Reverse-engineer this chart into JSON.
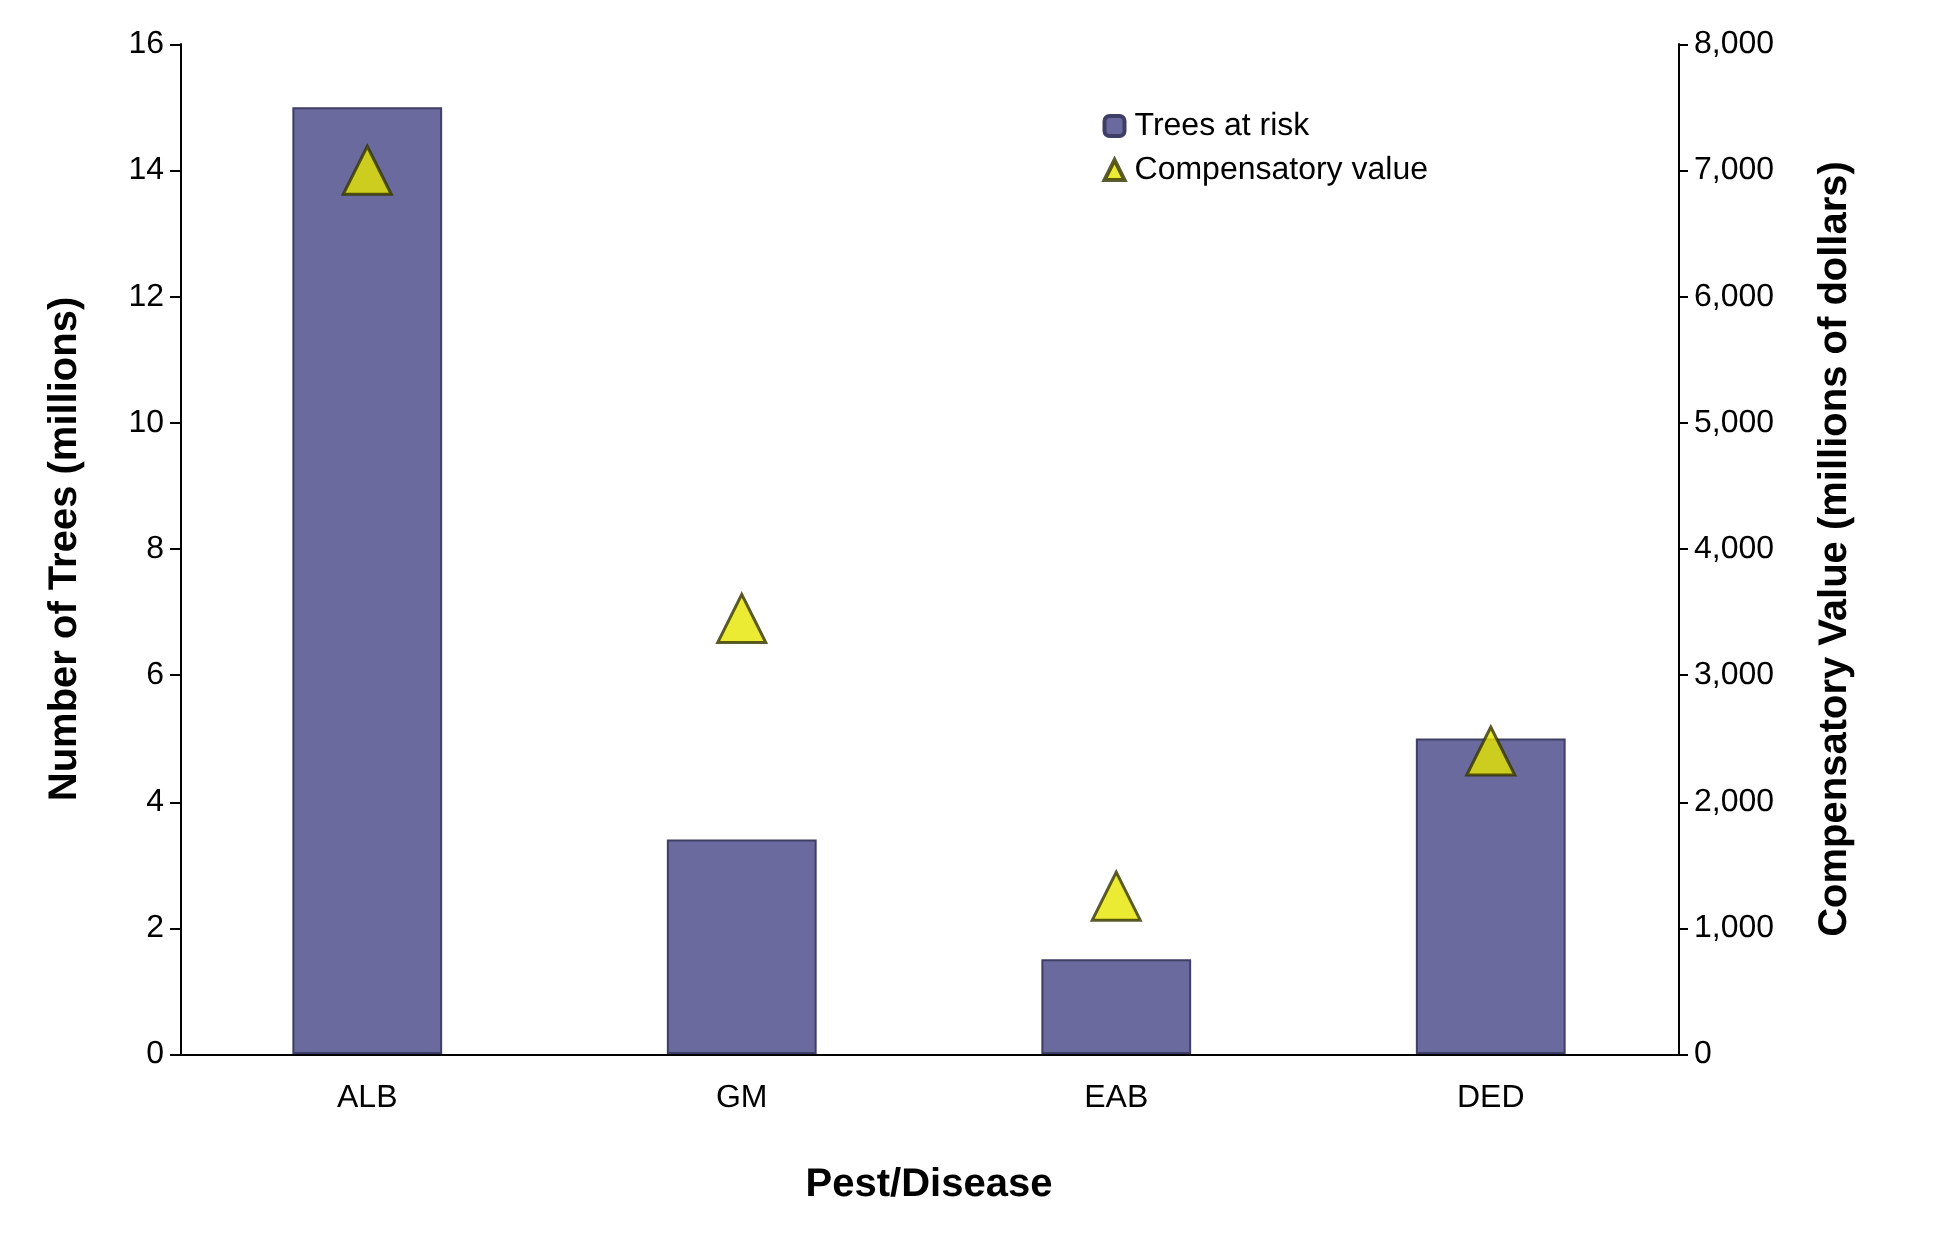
{
  "chart_data": {
    "type": "bar",
    "xlabel": "Pest/Disease",
    "ylabel": "Number of Trees (millions)",
    "y2label": "Compensatory Value (millions of dollars)",
    "categories": [
      "ALB",
      "GM",
      "EAB",
      "DED"
    ],
    "series": [
      {
        "name": "Trees at risk",
        "color": "#6a6a9e",
        "values": [
          15,
          3.4,
          1.5,
          5
        ]
      },
      {
        "name": "Compensatory value",
        "type": "scatter",
        "axis": "y2",
        "color": "#e6e600",
        "marker": "triangle",
        "values": [
          7000,
          3450,
          1250,
          2400
        ]
      }
    ],
    "ylim": [
      0,
      16
    ],
    "yticks": [
      0,
      2,
      4,
      6,
      8,
      10,
      12,
      14,
      16
    ],
    "y2lim": [
      0,
      8000
    ],
    "y2ticks": [
      {
        "value": 0,
        "label": "0"
      },
      {
        "value": 1000,
        "label": "1,000"
      },
      {
        "value": 2000,
        "label": "2,000"
      },
      {
        "value": 3000,
        "label": "3,000"
      },
      {
        "value": 4000,
        "label": "4,000"
      },
      {
        "value": 5000,
        "label": "5,000"
      },
      {
        "value": 6000,
        "label": "6,000"
      },
      {
        "value": 7000,
        "label": "7,000"
      },
      {
        "value": 8000,
        "label": "8,000"
      }
    ],
    "grid": false,
    "legend": "top right"
  }
}
